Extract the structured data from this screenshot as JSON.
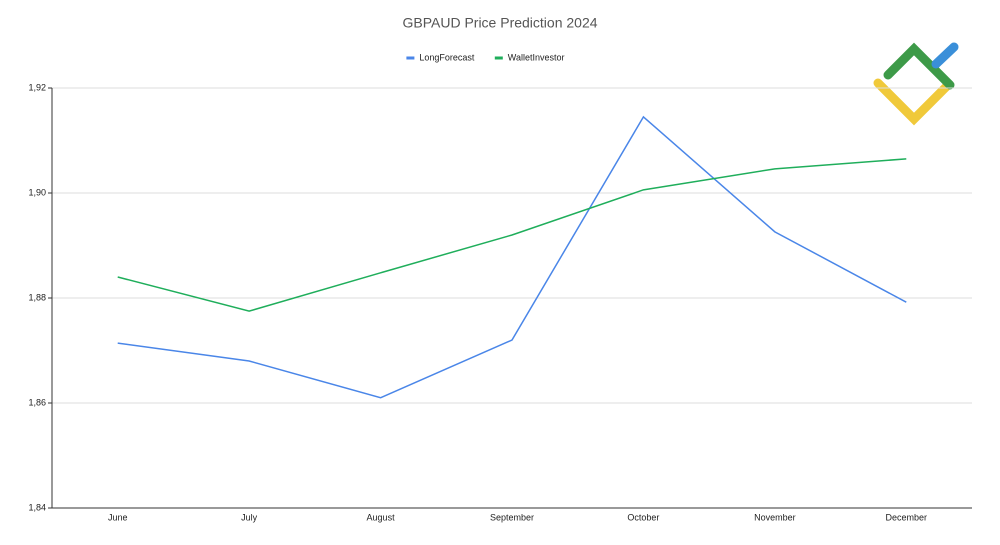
{
  "chart_data": {
    "type": "line",
    "title": "GBPAUD Price Prediction 2024",
    "categories": [
      "June",
      "July",
      "August",
      "September",
      "October",
      "November",
      "December"
    ],
    "series": [
      {
        "name": "LongForecast",
        "color": "#4a86e8",
        "values": [
          1.8714,
          1.868,
          1.861,
          1.872,
          1.9145,
          1.8926,
          1.8792
        ]
      },
      {
        "name": "WalletInvestor",
        "color": "#1fae5b",
        "values": [
          1.884,
          1.8775,
          1.8848,
          1.892,
          1.9006,
          1.9046,
          1.9065
        ]
      }
    ],
    "ylim": [
      1.84,
      1.92
    ],
    "yticks": [
      {
        "value": 1.84,
        "label": "1,84"
      },
      {
        "value": 1.86,
        "label": "1,86"
      },
      {
        "value": 1.88,
        "label": "1,88"
      },
      {
        "value": 1.9,
        "label": "1,90"
      },
      {
        "value": 1.92,
        "label": "1,92"
      }
    ],
    "grid": true,
    "legend": "top"
  }
}
